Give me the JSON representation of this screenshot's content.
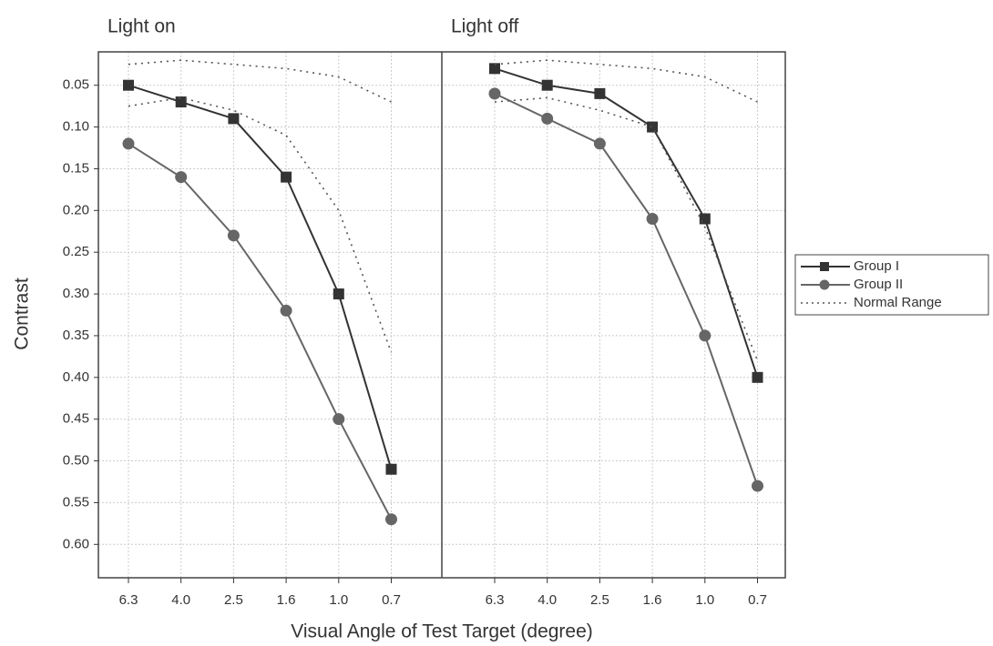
{
  "chart_data": {
    "type": "line",
    "ylabel": "Contrast",
    "xlabel": "Visual Angle of Test Target (degree)",
    "ylim": [
      0.01,
      0.64
    ],
    "y_inverted": true,
    "yticks": [
      0.05,
      {
        "value": 0.1,
        "label": "0.10"
      },
      0.15,
      {
        "value": 0.2,
        "label": "0.20"
      },
      0.25,
      {
        "value": 0.3,
        "label": "0.30"
      },
      0.35,
      {
        "value": 0.4,
        "label": "0.40"
      },
      0.45,
      {
        "value": 0.5,
        "label": "0.50"
      },
      0.55,
      {
        "value": 0.6,
        "label": "0.60"
      }
    ],
    "grid": true,
    "legend": [
      {
        "name": "Group I",
        "color": "#333333",
        "marker": "square",
        "dash": false
      },
      {
        "name": "Group II",
        "color": "#666666",
        "marker": "circle",
        "dash": false
      },
      {
        "name": "Normal Range",
        "color": "#555555",
        "marker": "none",
        "dash": true
      }
    ],
    "legend_position": "right",
    "panels": [
      {
        "title": "Light on",
        "categories": [
          "6.3",
          "4.0",
          "2.5",
          "1.6",
          "1.0",
          "0.7"
        ],
        "series": [
          {
            "legend": 0,
            "values": [
              0.05,
              0.07,
              0.09,
              0.16,
              0.3,
              0.51
            ]
          },
          {
            "legend": 1,
            "values": [
              0.12,
              0.16,
              0.23,
              0.32,
              0.45,
              0.57
            ]
          },
          {
            "legend": 2,
            "values": [
              0.025,
              0.02,
              0.025,
              0.03,
              0.04,
              0.07
            ]
          },
          {
            "legend": 2,
            "values": [
              0.075,
              0.065,
              0.08,
              0.11,
              0.2,
              0.37
            ]
          }
        ]
      },
      {
        "title": "Light off",
        "categories": [
          "6.3",
          "4.0",
          "2.5",
          "1.6",
          "1.0",
          "0.7"
        ],
        "series": [
          {
            "legend": 0,
            "values": [
              0.03,
              0.05,
              0.06,
              0.1,
              0.21,
              0.4
            ]
          },
          {
            "legend": 1,
            "values": [
              0.06,
              0.09,
              0.12,
              0.21,
              0.35,
              0.53
            ]
          },
          {
            "legend": 2,
            "values": [
              0.025,
              0.02,
              0.025,
              0.03,
              0.04,
              0.07
            ]
          },
          {
            "legend": 2,
            "values": [
              0.07,
              0.065,
              0.08,
              0.1,
              0.22,
              0.38
            ]
          }
        ]
      }
    ]
  }
}
